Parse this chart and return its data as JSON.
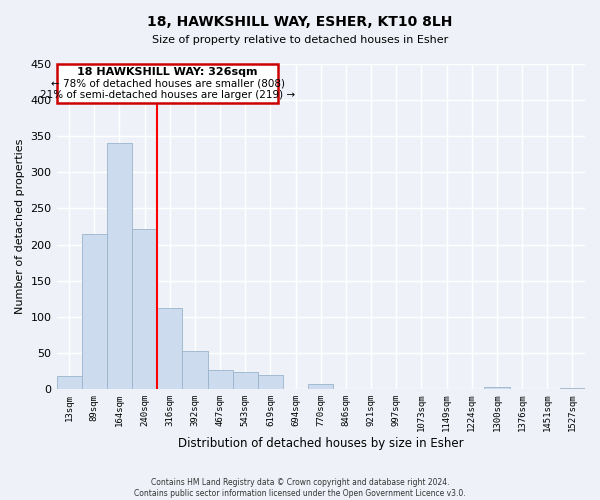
{
  "title": "18, HAWKSHILL WAY, ESHER, KT10 8LH",
  "subtitle": "Size of property relative to detached houses in Esher",
  "xlabel": "Distribution of detached houses by size in Esher",
  "ylabel": "Number of detached properties",
  "bar_labels": [
    "13sqm",
    "89sqm",
    "164sqm",
    "240sqm",
    "316sqm",
    "392sqm",
    "467sqm",
    "543sqm",
    "619sqm",
    "694sqm",
    "770sqm",
    "846sqm",
    "921sqm",
    "997sqm",
    "1073sqm",
    "1149sqm",
    "1224sqm",
    "1300sqm",
    "1376sqm",
    "1451sqm",
    "1527sqm"
  ],
  "bar_values": [
    18,
    215,
    340,
    222,
    112,
    53,
    26,
    24,
    20,
    0,
    7,
    0,
    0,
    0,
    0,
    0,
    0,
    3,
    0,
    0,
    2
  ],
  "bar_color": "#ccdcee",
  "bar_edge_color": "#9ab4cc",
  "vline_x": 3.5,
  "vline_color": "red",
  "ylim": [
    0,
    450
  ],
  "yticks": [
    0,
    50,
    100,
    150,
    200,
    250,
    300,
    350,
    400,
    450
  ],
  "annotation_title": "18 HAWKSHILL WAY: 326sqm",
  "annotation_line1": "← 78% of detached houses are smaller (808)",
  "annotation_line2": "21% of semi-detached houses are larger (219) →",
  "footer_line1": "Contains HM Land Registry data © Crown copyright and database right 2024.",
  "footer_line2": "Contains public sector information licensed under the Open Government Licence v3.0.",
  "background_color": "#eef2f8",
  "plot_bg_color": "#eef2f8",
  "grid_color": "#ffffff"
}
